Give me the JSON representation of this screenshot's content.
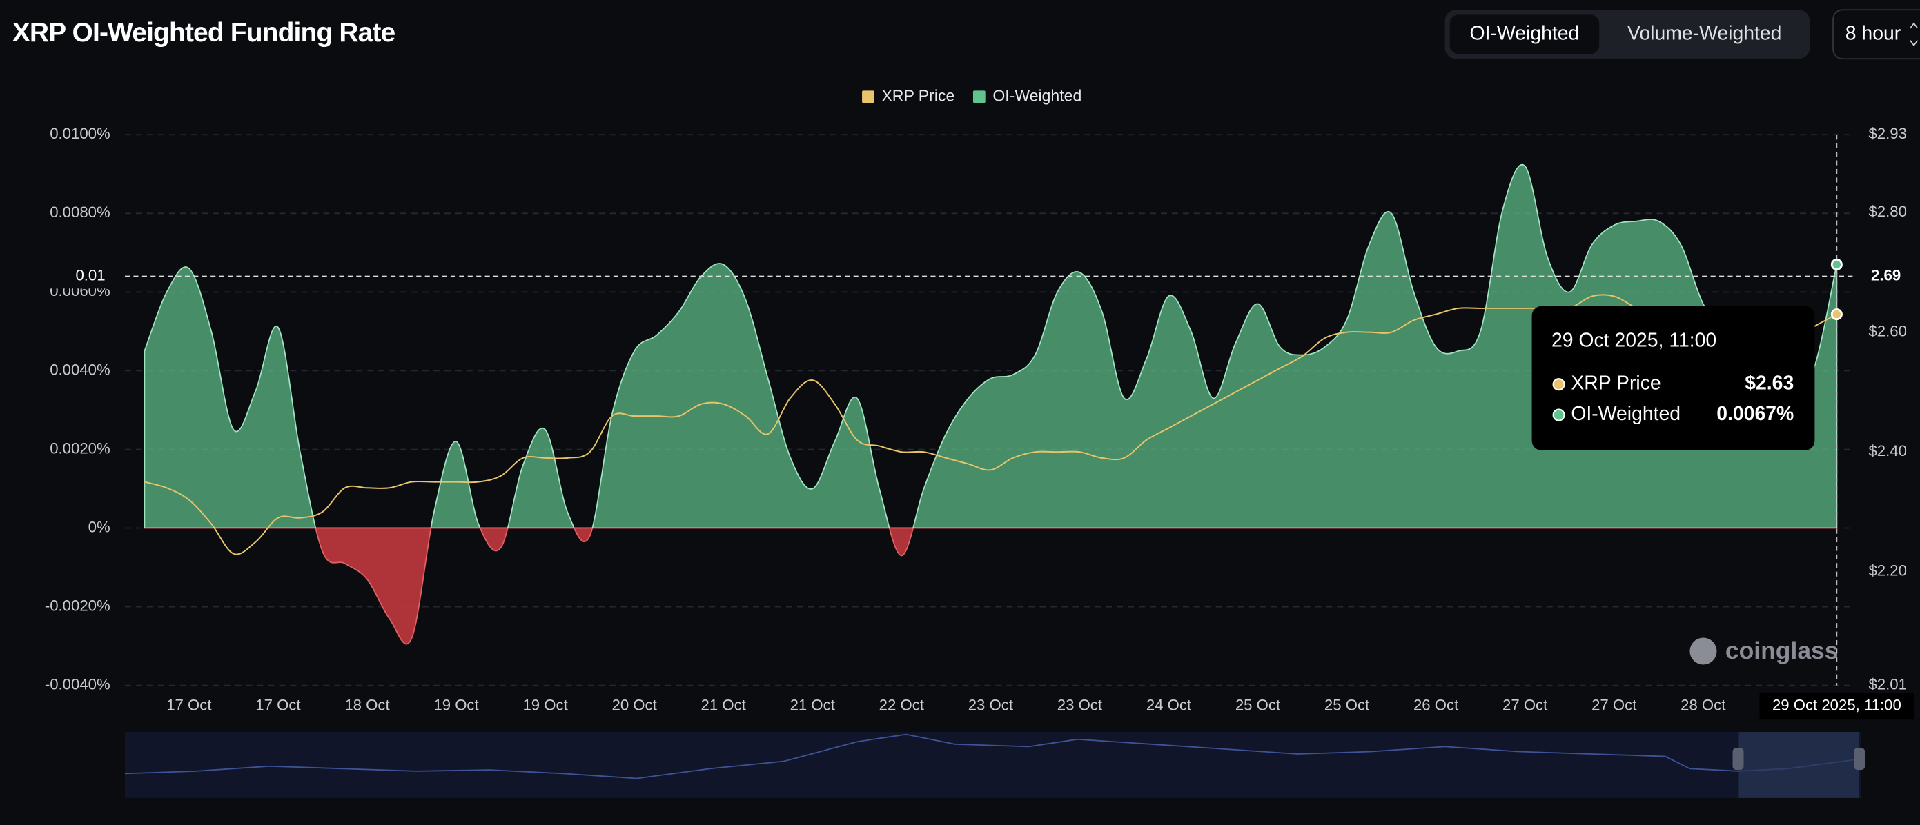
{
  "header": {
    "title": "XRP OI-Weighted Funding Rate",
    "toggle": [
      "OI-Weighted",
      "Volume-Weighted"
    ],
    "interval": "8 hour"
  },
  "chart_data": {
    "type": "area-line",
    "categories": [
      null,
      null,
      "17 Oct",
      null,
      null,
      null,
      "17 Oct",
      null,
      null,
      null,
      "18 Oct",
      null,
      null,
      null,
      "19 Oct",
      null,
      null,
      null,
      "19 Oct",
      null,
      null,
      null,
      "20 Oct",
      null,
      null,
      null,
      "21 Oct",
      null,
      null,
      null,
      "21 Oct",
      null,
      null,
      null,
      "22 Oct",
      null,
      null,
      null,
      "23 Oct",
      null,
      null,
      null,
      "23 Oct",
      null,
      null,
      null,
      "24 Oct",
      null,
      null,
      null,
      "25 Oct",
      null,
      null,
      null,
      "25 Oct",
      null,
      null,
      null,
      "26 Oct",
      null,
      null,
      null,
      "27 Oct",
      null,
      null,
      null,
      "27 Oct",
      null,
      null,
      null,
      "28 Oct",
      null,
      null,
      null,
      null,
      null,
      "29 Oct 2025, 11:00"
    ],
    "series": [
      {
        "name": "XRP Price",
        "color": "#e9c46a",
        "axis": "y2",
        "values": [
          2.35,
          2.34,
          2.32,
          2.28,
          2.23,
          2.25,
          2.29,
          2.29,
          2.3,
          2.34,
          2.34,
          2.34,
          2.35,
          2.35,
          2.35,
          2.35,
          2.36,
          2.39,
          2.39,
          2.39,
          2.4,
          2.46,
          2.46,
          2.46,
          2.46,
          2.48,
          2.48,
          2.46,
          2.43,
          2.49,
          2.52,
          2.48,
          2.42,
          2.41,
          2.4,
          2.4,
          2.39,
          2.38,
          2.37,
          2.39,
          2.4,
          2.4,
          2.4,
          2.39,
          2.39,
          2.42,
          2.44,
          2.46,
          2.48,
          2.5,
          2.52,
          2.54,
          2.56,
          2.59,
          2.6,
          2.6,
          2.6,
          2.62,
          2.63,
          2.64,
          2.64,
          2.64,
          2.64,
          2.64,
          2.64,
          2.66,
          2.66,
          2.64,
          2.62,
          2.6,
          2.59,
          2.57,
          2.57,
          2.58,
          2.59,
          2.61,
          2.63
        ]
      },
      {
        "name": "OI-Weighted",
        "color": "#5fc48e",
        "negative_color": "#c0393f",
        "values": [
          0.0045,
          0.006,
          0.0066,
          0.005,
          0.0025,
          0.0035,
          0.0051,
          0.0019,
          -0.0006,
          -0.0009,
          -0.0013,
          -0.0023,
          -0.0028,
          0.0004,
          0.0022,
          0.0001,
          -0.0005,
          0.0016,
          0.0025,
          0.0004,
          -0.0002,
          0.0029,
          0.0045,
          0.0049,
          0.0055,
          0.0064,
          0.0067,
          0.0058,
          0.0038,
          0.0018,
          0.001,
          0.0022,
          0.0033,
          0.001,
          -0.0007,
          0.001,
          0.0024,
          0.0033,
          0.0038,
          0.0039,
          0.0044,
          0.006,
          0.0065,
          0.0055,
          0.0033,
          0.0043,
          0.0059,
          0.005,
          0.0033,
          0.0047,
          0.0057,
          0.0046,
          0.0044,
          0.0046,
          0.0053,
          0.0072,
          0.008,
          0.006,
          0.0046,
          0.0045,
          0.005,
          0.0081,
          0.0092,
          0.0069,
          0.006,
          0.0072,
          0.0077,
          0.0078,
          0.0078,
          0.0072,
          0.0057,
          0.005,
          0.0041,
          0.0035,
          0.0033,
          0.0041,
          0.0067
        ]
      }
    ],
    "ylim": [
      -0.004,
      0.01
    ],
    "yticks": [
      {
        "value": -0.004,
        "label": "-0.0040%"
      },
      {
        "value": -0.002,
        "label": "-0.0020%"
      },
      {
        "value": 0,
        "label": "0%"
      },
      {
        "value": 0.002,
        "label": "0.0020%"
      },
      {
        "value": 0.004,
        "label": "0.0040%"
      },
      {
        "value": 0.006,
        "label": "0.0060%"
      },
      {
        "value": 0.008,
        "label": "0.0080%"
      },
      {
        "value": 0.01,
        "label": "0.0100%"
      }
    ],
    "y2lim": [
      2.01,
      2.93
    ],
    "y2ticks": [
      {
        "value": 2.01,
        "label": "$2.01"
      },
      {
        "value": 2.2,
        "label": "$2.20"
      },
      {
        "value": 2.4,
        "label": "$2.40"
      },
      {
        "value": 2.6,
        "label": "$2.60"
      },
      {
        "value": 2.8,
        "label": "$2.80"
      },
      {
        "value": 2.93,
        "label": "$2.93"
      }
    ],
    "grid": true,
    "legend": "top",
    "crosshair": {
      "y": {
        "value": 0.0064,
        "label": "0.01"
      },
      "y2": {
        "value": 2.69,
        "label": "2.69"
      }
    },
    "tooltip": {
      "title": "29 Oct 2025, 11:00",
      "items": [
        {
          "name": "XRP Price",
          "value": 2.63,
          "label": "$2.63"
        },
        {
          "name": "OI-Weighted",
          "value": 0.0067,
          "label": "0.0067%"
        }
      ]
    },
    "watermark": "coinglass"
  }
}
